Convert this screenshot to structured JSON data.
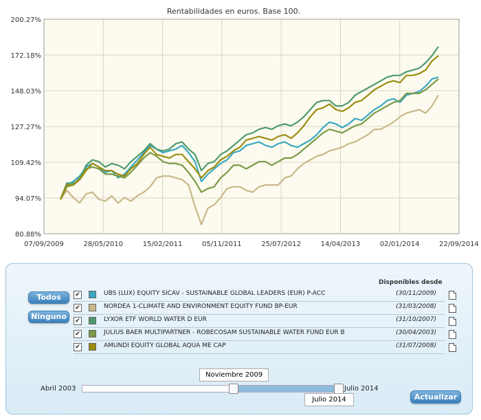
{
  "chart_data": {
    "type": "line",
    "title": "Rentabilidades en euros. Base 100.",
    "yticks": [
      "200.27%",
      "172.18%",
      "148.03%",
      "127.27%",
      "109.42%",
      "94.07%",
      "80.88%"
    ],
    "xticks": [
      "07/09/2009",
      "28/05/2010",
      "15/02/2011",
      "05/11/2011",
      "25/07/2012",
      "14/04/2013",
      "02/01/2014",
      "22/09/2014"
    ],
    "series": [
      {
        "name": "UBS (LUX) EQUITY SICAV - SUSTAINABLE GLOBAL LEADERS (EUR) P-ACC",
        "color": "#3aa8c1",
        "x": [
          0,
          1,
          2,
          3,
          4,
          5,
          6,
          7,
          8,
          9,
          10,
          11,
          12,
          13,
          14,
          15,
          16,
          17,
          18,
          19,
          20,
          21,
          22,
          23,
          24,
          25,
          26,
          27,
          28,
          29,
          30,
          31,
          32,
          33,
          34,
          35,
          36,
          37,
          38,
          39,
          40,
          41,
          42,
          43,
          44,
          45,
          46,
          47,
          48,
          49,
          50,
          51,
          52,
          53,
          54,
          55,
          56,
          57,
          58,
          59
        ],
        "y": [
          100,
          108,
          110,
          113,
          118,
          120,
          118,
          115,
          116,
          112,
          114,
          118,
          122,
          126,
          130,
          128,
          126,
          127,
          128,
          130,
          126,
          121,
          110,
          114,
          117,
          120,
          122,
          126,
          127,
          130,
          131,
          132,
          130,
          129,
          131,
          132,
          130,
          129,
          131,
          133,
          136,
          140,
          143,
          142,
          140,
          142,
          145,
          144,
          147,
          150,
          152,
          155,
          156,
          154,
          158,
          159,
          160,
          163,
          167,
          168
        ]
      },
      {
        "name": "NORDEA 1-CLIMATE AND ENVIRONMENT EQUITY FUND BP-EUR",
        "color": "#c8b88a",
        "x": [
          0,
          1,
          2,
          3,
          4,
          5,
          6,
          7,
          8,
          9,
          10,
          11,
          12,
          13,
          14,
          15,
          16,
          17,
          18,
          19,
          20,
          21,
          22,
          23,
          24,
          25,
          26,
          27,
          28,
          29,
          30,
          31,
          32,
          33,
          34,
          35,
          36,
          37,
          38,
          39,
          40,
          41,
          42,
          43,
          44,
          45,
          46,
          47,
          48,
          49,
          50,
          51,
          52,
          53,
          54,
          55,
          56,
          57,
          58,
          59
        ],
        "y": [
          100,
          105,
          101,
          98,
          103,
          104,
          100,
          99,
          102,
          98,
          101,
          99,
          102,
          104,
          107,
          112,
          113,
          113,
          112,
          111,
          108,
          96,
          86,
          95,
          97,
          101,
          106,
          107,
          107,
          105,
          104,
          107,
          108,
          108,
          108,
          112,
          113,
          117,
          120,
          122,
          124,
          125,
          127,
          128,
          129,
          131,
          132,
          134,
          136,
          139,
          139,
          141,
          143,
          146,
          148,
          149,
          150,
          148,
          152,
          158
        ]
      },
      {
        "name": "LYXOR ETF WORLD WATER D EUR",
        "color": "#4e9a6e",
        "x": [
          0,
          1,
          2,
          3,
          4,
          5,
          6,
          7,
          8,
          9,
          10,
          11,
          12,
          13,
          14,
          15,
          16,
          17,
          18,
          19,
          20,
          21,
          22,
          23,
          24,
          25,
          26,
          27,
          28,
          29,
          30,
          31,
          32,
          33,
          34,
          35,
          36,
          37,
          38,
          39,
          40,
          41,
          42,
          43,
          44,
          45,
          46,
          47,
          48,
          49,
          50,
          51,
          52,
          53,
          54,
          55,
          56,
          57,
          58,
          59
        ],
        "y": [
          100,
          109,
          109,
          111,
          119,
          122,
          121,
          118,
          120,
          119,
          117,
          121,
          124,
          127,
          131,
          128,
          127,
          128,
          131,
          132,
          128,
          125,
          116,
          120,
          121,
          125,
          127,
          130,
          133,
          136,
          137,
          139,
          140,
          139,
          141,
          142,
          141,
          143,
          146,
          150,
          154,
          155,
          155,
          152,
          152,
          154,
          158,
          160,
          162,
          164,
          166,
          168,
          169,
          169,
          171,
          172,
          173,
          176,
          180,
          185
        ]
      },
      {
        "name": "JULIUS BAER MULTIPARTNER - ROBECOSAM SUSTAINABLE WATER FUND EUR B",
        "color": "#7a9a46",
        "x": [
          0,
          1,
          2,
          3,
          4,
          5,
          6,
          7,
          8,
          9,
          10,
          11,
          12,
          13,
          14,
          15,
          16,
          17,
          18,
          19,
          20,
          21,
          22,
          23,
          24,
          25,
          26,
          27,
          28,
          29,
          30,
          31,
          32,
          33,
          34,
          35,
          36,
          37,
          38,
          39,
          40,
          41,
          42,
          43,
          44,
          45,
          46,
          47,
          48,
          49,
          50,
          51,
          52,
          53,
          54,
          55,
          56,
          57,
          58,
          59
        ],
        "y": [
          100,
          107,
          108,
          112,
          117,
          118,
          117,
          114,
          114,
          113,
          112,
          115,
          119,
          123,
          126,
          124,
          121,
          120,
          120,
          119,
          115,
          110,
          104,
          106,
          107,
          112,
          115,
          119,
          119,
          117,
          119,
          121,
          121,
          119,
          121,
          123,
          123,
          125,
          128,
          131,
          134,
          137,
          139,
          138,
          137,
          139,
          141,
          142,
          145,
          148,
          150,
          152,
          154,
          155,
          159,
          159,
          159,
          161,
          164,
          167
        ]
      },
      {
        "name": "AMUNDI EQUITY GLOBAL AQUA ME CAP",
        "color": "#9a8c10",
        "x": [
          0,
          1,
          2,
          3,
          4,
          5,
          6,
          7,
          8,
          9,
          10,
          11,
          12,
          13,
          14,
          15,
          16,
          17,
          18,
          19,
          20,
          21,
          22,
          23,
          24,
          25,
          26,
          27,
          28,
          29,
          30,
          31,
          32,
          33,
          34,
          35,
          36,
          37,
          38,
          39,
          40,
          41,
          42,
          43,
          44,
          45,
          46,
          47,
          48,
          49,
          50,
          51,
          52,
          53,
          54,
          55,
          56,
          57,
          58,
          59
        ],
        "y": [
          100,
          108,
          108,
          111,
          116,
          120,
          118,
          116,
          116,
          114,
          113,
          117,
          120,
          125,
          129,
          125,
          124,
          123,
          125,
          125,
          121,
          117,
          112,
          116,
          118,
          122,
          124,
          127,
          129,
          133,
          134,
          135,
          134,
          133,
          135,
          136,
          134,
          137,
          141,
          146,
          150,
          151,
          153,
          150,
          149,
          151,
          154,
          155,
          158,
          161,
          163,
          165,
          166,
          165,
          169,
          169,
          170,
          172,
          177,
          180
        ]
      }
    ]
  },
  "panel": {
    "btn_all": "Todos",
    "btn_none": "Ninguno",
    "available_header": "Disponibles desde",
    "check": "✔",
    "funds": [
      {
        "name": "UBS (LUX) EQUITY SICAV - SUSTAINABLE GLOBAL LEADERS (EUR) P-ACC",
        "date": "(30/11/2009)",
        "color": "#3aa8c1"
      },
      {
        "name": "NORDEA 1-CLIMATE AND ENVIRONMENT EQUITY FUND BP-EUR",
        "date": "(31/03/2008)",
        "color": "#c8b88a"
      },
      {
        "name": "LYXOR ETF WORLD WATER D EUR",
        "date": "(31/10/2007)",
        "color": "#4e9a6e"
      },
      {
        "name": "JULIUS BAER MULTIPARTNER - ROBECOSAM SUSTAINABLE WATER FUND EUR B",
        "date": "(30/04/2003)",
        "color": "#7a9a46"
      },
      {
        "name": "AMUNDI EQUITY GLOBAL AQUA ME CAP",
        "date": "(31/07/2008)",
        "color": "#9a8c10"
      }
    ],
    "slider": {
      "min_label": "Abril 2003",
      "max_label": "Julio 2014",
      "start_label": "Noviembre 2009",
      "end_label": "Julio 2014"
    },
    "update_btn": "Actualizar"
  }
}
